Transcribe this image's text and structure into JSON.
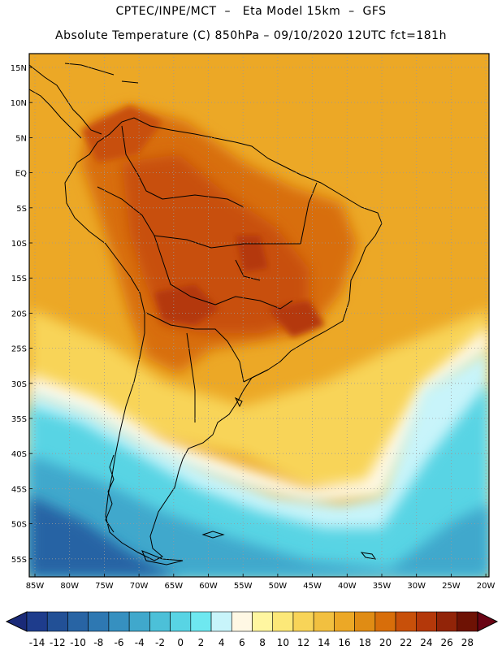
{
  "header": {
    "line1": "CPTEC/INPE/MCT  –   Eta Model 15km  –  GFS",
    "line2": "Absolute Temperature (C) 850hPa – 09/10/2020 12UTC fct=181h"
  },
  "map": {
    "lat_labels": [
      "15N",
      "10N",
      "5N",
      "EQ",
      "5S",
      "10S",
      "15S",
      "20S",
      "25S",
      "30S",
      "35S",
      "40S",
      "45S",
      "50S",
      "55S"
    ],
    "lon_labels": [
      "85W",
      "80W",
      "75W",
      "70W",
      "65W",
      "60W",
      "55W",
      "50W",
      "45W",
      "40W",
      "35W",
      "30W",
      "25W",
      "20W"
    ],
    "colors": {
      "hot": "#c05010",
      "warm": "#e8961c",
      "mild": "#f2b830",
      "cool": "#4fd0e4",
      "cold": "#2a78b0",
      "land_border": "#000000"
    }
  },
  "colorbar": {
    "labels": [
      "-14",
      "-12",
      "-10",
      "-8",
      "-6",
      "-4",
      "-2",
      "0",
      "2",
      "4",
      "6",
      "8",
      "10",
      "12",
      "14",
      "16",
      "18",
      "20",
      "22",
      "24",
      "26",
      "28"
    ],
    "colors": [
      "#1e3c8c",
      "#225096",
      "#2864a4",
      "#2e78b2",
      "#3690c0",
      "#40a8cc",
      "#4cc0d8",
      "#58d4e4",
      "#6ee8f0",
      "#c8f4fa",
      "#fff8e4",
      "#fff6a0",
      "#fce878",
      "#f8d458",
      "#f2c040",
      "#eca826",
      "#e08c14",
      "#d86e0a",
      "#c8500a",
      "#b4380a",
      "#922408",
      "#6e1204"
    ],
    "end_low": "#1a2a78",
    "end_high": "#6a0414"
  }
}
